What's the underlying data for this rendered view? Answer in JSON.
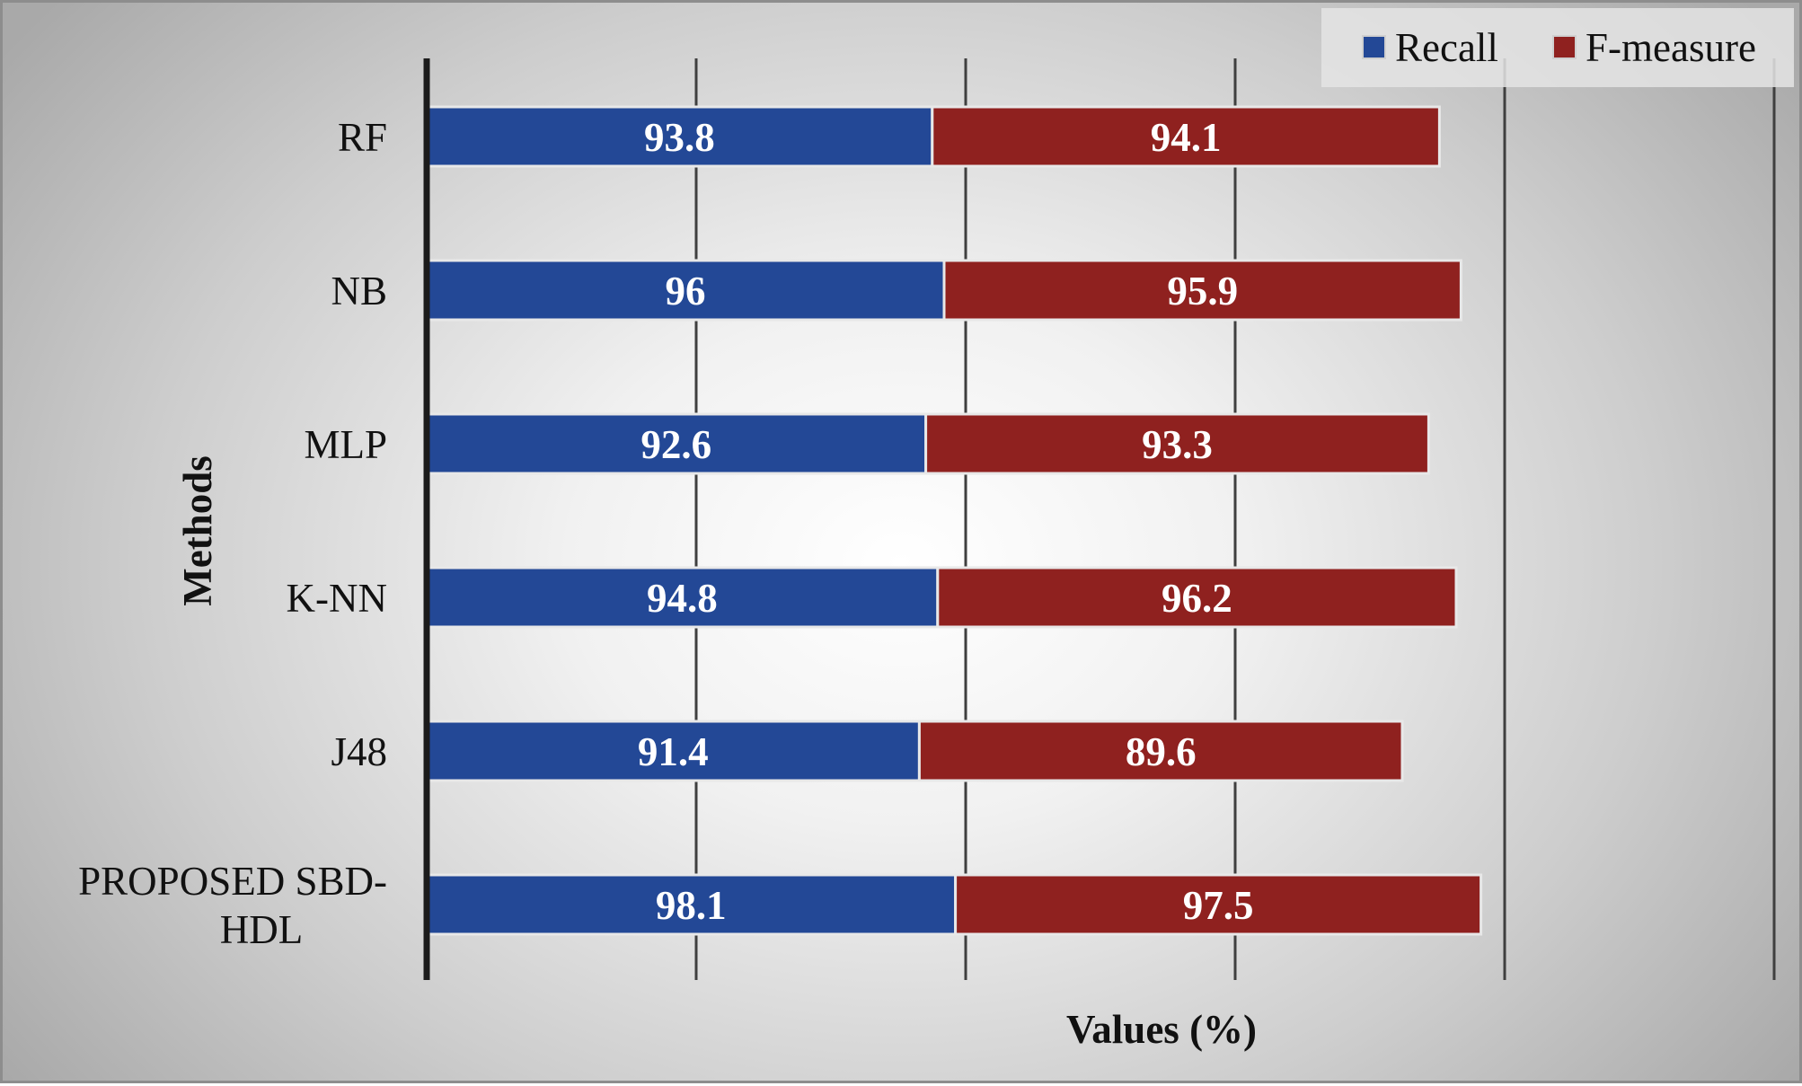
{
  "chart_data": {
    "type": "bar",
    "orientation": "horizontal",
    "stacked": true,
    "categories": [
      "RF",
      "NB",
      "MLP",
      "K-NN",
      "J48",
      "PROPOSED SBD-HDL"
    ],
    "category_lines": [
      [
        "RF"
      ],
      [
        "NB"
      ],
      [
        "MLP"
      ],
      [
        "K-NN"
      ],
      [
        "J48"
      ],
      [
        "PROPOSED SBD-",
        "HDL"
      ]
    ],
    "series": [
      {
        "name": "Recall",
        "values": [
          93.8,
          96,
          92.6,
          94.8,
          91.4,
          98.1
        ],
        "color": "#234896"
      },
      {
        "name": "F-measure",
        "values": [
          94.1,
          95.9,
          93.3,
          96.2,
          89.6,
          97.5
        ],
        "color": "#8f211f"
      }
    ],
    "xlabel": "Values (%)",
    "ylabel": "Methods",
    "xlim": [
      0,
      250
    ],
    "x_gridline_step": 50,
    "grid": true,
    "legend_position": "top-right",
    "data_labels": true
  }
}
